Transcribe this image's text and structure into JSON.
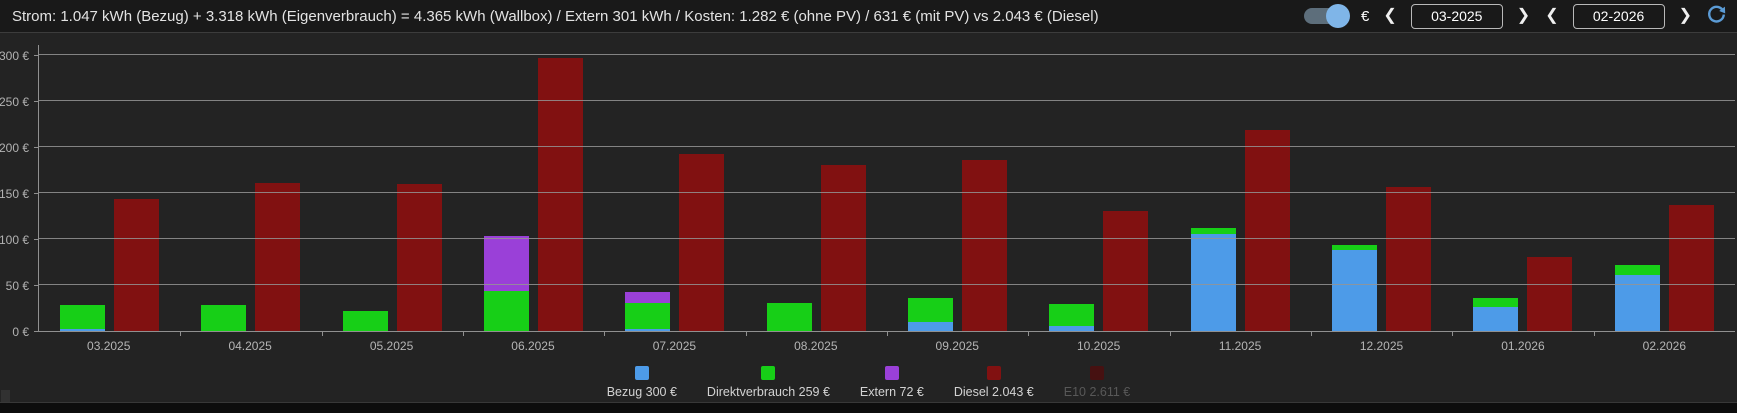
{
  "header": {
    "summary": "Strom: 1.047 kWh (Bezug) + 3.318 kWh (Eigenverbrauch) = 4.365 kWh (Wallbox) / Extern 301 kWh / Kosten: 1.282 € (ohne PV) / 631 € (mit PV) vs 2.043 € (Diesel)",
    "currency_toggle": {
      "state": "on",
      "label": "€"
    },
    "date_range": {
      "from": "03-2025",
      "to": "02-2026"
    },
    "nav": {
      "prev": "❮",
      "next": "❯"
    },
    "refresh_icon_color": "#5b9bd5"
  },
  "chart_data": {
    "type": "bar",
    "stacked": true,
    "categories": [
      "03.2025",
      "04.2025",
      "05.2025",
      "06.2025",
      "07.2025",
      "08.2025",
      "09.2025",
      "10.2025",
      "11.2025",
      "12.2025",
      "01.2026",
      "02.2026"
    ],
    "series": [
      {
        "name": "Bezug",
        "stack": "strom",
        "color": "#4d9be8",
        "values": [
          2,
          0,
          0,
          0,
          2,
          0,
          10,
          5,
          106,
          88,
          26,
          61
        ]
      },
      {
        "name": "Direktverbrauch",
        "stack": "strom",
        "color": "#17cf17",
        "values": [
          26,
          28,
          22,
          43,
          28,
          30,
          26,
          24,
          6,
          5,
          10,
          11
        ]
      },
      {
        "name": "Extern",
        "stack": "strom",
        "color": "#9a40d8",
        "values": [
          0,
          0,
          0,
          60,
          12,
          0,
          0,
          0,
          0,
          0,
          0,
          0
        ]
      },
      {
        "name": "Diesel",
        "stack": "diesel",
        "color": "#811111",
        "values": [
          144,
          161,
          160,
          297,
          192,
          180,
          186,
          130,
          219,
          157,
          80,
          137
        ]
      }
    ],
    "unit": "€",
    "ylim": [
      0,
      310
    ],
    "yticks": [
      0,
      50,
      100,
      150,
      200,
      250,
      300
    ],
    "ytick_suffix": " €",
    "xlabel": "",
    "ylabel": "",
    "grid": true,
    "legend_position": "bottom",
    "legend": [
      {
        "label": "Bezug 300 €",
        "color": "#4d9be8",
        "active": true
      },
      {
        "label": "Direktverbrauch 259 €",
        "color": "#17cf17",
        "active": true
      },
      {
        "label": "Extern 72 €",
        "color": "#9a40d8",
        "active": true
      },
      {
        "label": "Diesel 2.043 €",
        "color": "#811111",
        "active": true
      },
      {
        "label": "E10 2.611 €",
        "color": "#461111",
        "active": false
      }
    ]
  }
}
